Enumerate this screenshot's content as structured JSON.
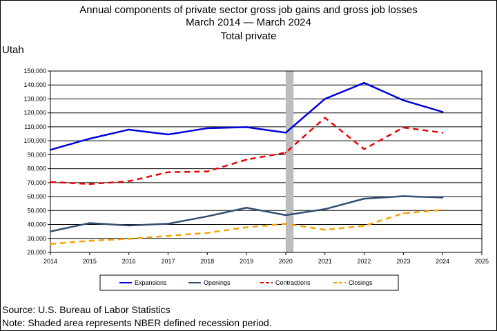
{
  "titles": {
    "line1": "Annual components of private sector gross job gains and gross job losses",
    "line2": "March 2014 — March 2024",
    "line3": "Total private"
  },
  "region": "Utah",
  "footer": {
    "source": "Source: U.S. Bureau of Labor Statistics",
    "note": "Note: Shaded area represents NBER defined recession period."
  },
  "chart_data": {
    "type": "line",
    "x": [
      2014,
      2015,
      2016,
      2017,
      2018,
      2019,
      2020,
      2021,
      2022,
      2023,
      2024
    ],
    "xlim": [
      2014,
      2025
    ],
    "x_ticks": [
      "2014",
      "2015",
      "2016",
      "2017",
      "2018",
      "2019",
      "2020",
      "2021",
      "2022",
      "2023",
      "2024",
      "2025"
    ],
    "ylim": [
      20000,
      150000
    ],
    "y_ticks": [
      "20,000",
      "30,000",
      "40,000",
      "50,000",
      "60,000",
      "70,000",
      "80,000",
      "90,000",
      "100,000",
      "110,000",
      "120,000",
      "130,000",
      "140,000",
      "150,000"
    ],
    "grid": "horizontal",
    "recession": [
      2020,
      2020.2
    ],
    "legend_position": "bottom",
    "series": [
      {
        "name": "Expansions",
        "color": "#0000dd",
        "style": "solid",
        "values": [
          93500,
          101500,
          108000,
          104500,
          109000,
          109800,
          105800,
          130000,
          141500,
          129000,
          120700
        ]
      },
      {
        "name": "Openings",
        "color": "#334d6e",
        "style": "solid",
        "values": [
          35000,
          41000,
          39300,
          40500,
          45800,
          52000,
          46700,
          51000,
          58500,
          60300,
          59300
        ]
      },
      {
        "name": "Contractions",
        "color": "#ee0000",
        "style": "dashed",
        "values": [
          70500,
          69000,
          71000,
          77500,
          78000,
          86500,
          91500,
          116500,
          94000,
          109500,
          105800
        ]
      },
      {
        "name": "Closings",
        "color": "#f5a000",
        "style": "dashed",
        "values": [
          26000,
          28300,
          29700,
          31800,
          34000,
          38000,
          40500,
          36200,
          39000,
          48000,
          50500
        ]
      }
    ]
  }
}
